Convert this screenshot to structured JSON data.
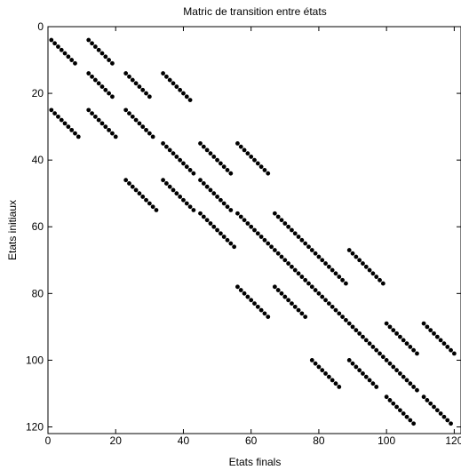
{
  "chart_data": {
    "type": "scatter",
    "title": "Matric de transition entre états",
    "xlabel": "Etats finals",
    "ylabel": "Etats initiaux",
    "xlim": [
      0,
      122
    ],
    "ylim": [
      122,
      0
    ],
    "x_ticks": [
      0,
      20,
      40,
      60,
      80,
      100,
      120
    ],
    "y_ticks": [
      0,
      20,
      40,
      60,
      80,
      100,
      120
    ],
    "y_axis_inverted": true,
    "grid": false,
    "marker": "filled-circle",
    "marker_color": "#000000",
    "segment_note": "Each segment lists diagonal runs of nonzero entries: for k = 0..n-1, point (x0+k, y0+k).",
    "segments": [
      {
        "x0": 1,
        "y0": 4,
        "n": 8
      },
      {
        "x0": 12,
        "y0": 4,
        "n": 8
      },
      {
        "x0": 12,
        "y0": 14,
        "n": 8
      },
      {
        "x0": 23,
        "y0": 14,
        "n": 8
      },
      {
        "x0": 34,
        "y0": 14,
        "n": 9
      },
      {
        "x0": 1,
        "y0": 25,
        "n": 9
      },
      {
        "x0": 12,
        "y0": 25,
        "n": 9
      },
      {
        "x0": 23,
        "y0": 25,
        "n": 9
      },
      {
        "x0": 34,
        "y0": 35,
        "n": 10
      },
      {
        "x0": 45,
        "y0": 35,
        "n": 10
      },
      {
        "x0": 56,
        "y0": 35,
        "n": 10
      },
      {
        "x0": 23,
        "y0": 46,
        "n": 10
      },
      {
        "x0": 34,
        "y0": 46,
        "n": 10
      },
      {
        "x0": 45,
        "y0": 46,
        "n": 10
      },
      {
        "x0": 45,
        "y0": 56,
        "n": 11
      },
      {
        "x0": 56,
        "y0": 56,
        "n": 11
      },
      {
        "x0": 67,
        "y0": 56,
        "n": 11
      },
      {
        "x0": 67,
        "y0": 67,
        "n": 11
      },
      {
        "x0": 78,
        "y0": 67,
        "n": 11
      },
      {
        "x0": 89,
        "y0": 67,
        "n": 11
      },
      {
        "x0": 56,
        "y0": 78,
        "n": 10
      },
      {
        "x0": 67,
        "y0": 78,
        "n": 10
      },
      {
        "x0": 78,
        "y0": 78,
        "n": 11
      },
      {
        "x0": 89,
        "y0": 89,
        "n": 11
      },
      {
        "x0": 100,
        "y0": 89,
        "n": 10
      },
      {
        "x0": 111,
        "y0": 89,
        "n": 10
      },
      {
        "x0": 78,
        "y0": 100,
        "n": 9
      },
      {
        "x0": 89,
        "y0": 100,
        "n": 9
      },
      {
        "x0": 100,
        "y0": 100,
        "n": 10
      },
      {
        "x0": 111,
        "y0": 111,
        "n": 9
      },
      {
        "x0": 100,
        "y0": 111,
        "n": 9
      }
    ]
  }
}
